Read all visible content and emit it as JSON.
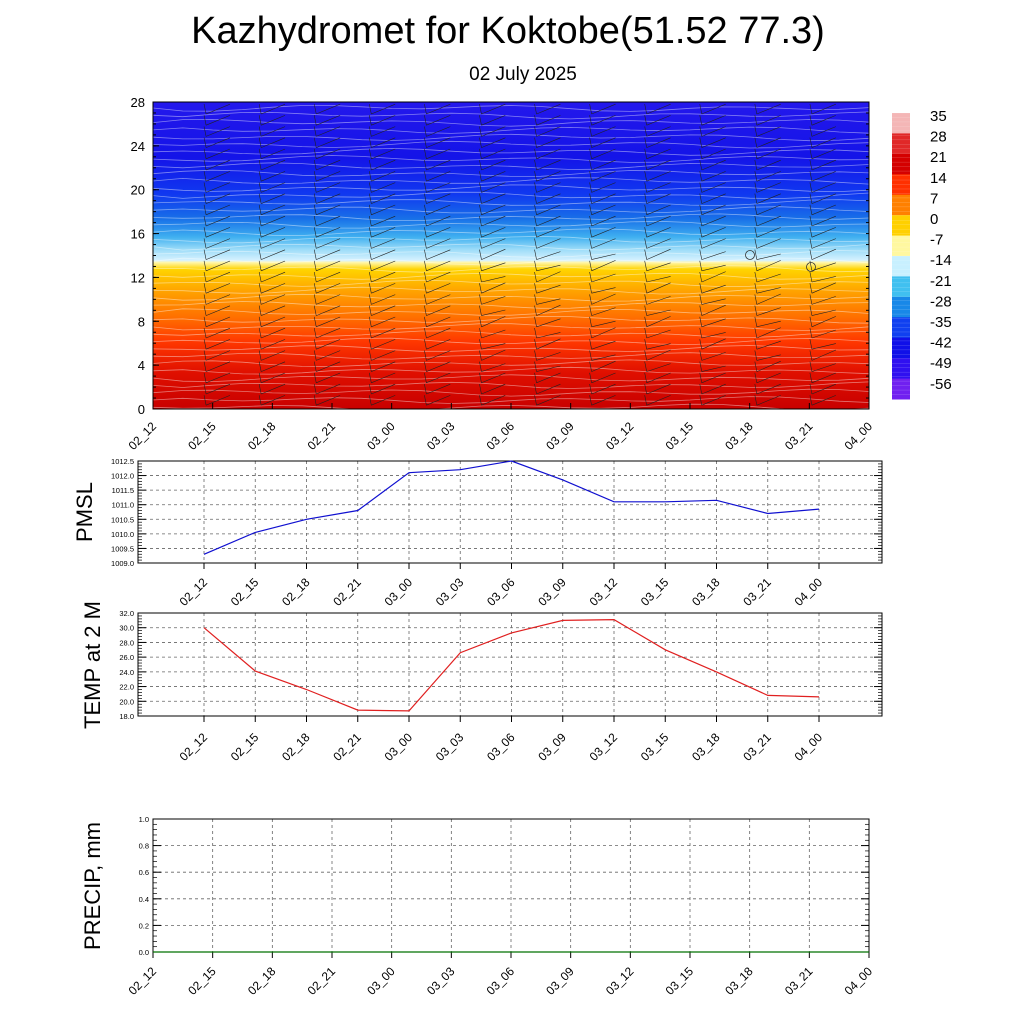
{
  "header": {
    "title": "Kazhydromet for Koktobe(51.52 77.3)",
    "subtitle": "02 July 2025"
  },
  "colors": {
    "pmsl_line": "#1010d0",
    "temp_line": "#e02020",
    "precip_line": "#007000"
  },
  "chart_data": [
    {
      "type": "heatmap",
      "title": "",
      "xlabel": "",
      "ylabel": "",
      "x_tick_labels": [
        "02_12",
        "02_15",
        "02_18",
        "02_21",
        "03_00",
        "03_03",
        "03_06",
        "03_09",
        "03_12",
        "03_15",
        "03_18",
        "03_21",
        "04_00"
      ],
      "y_ticks": [
        0,
        4,
        8,
        12,
        16,
        20,
        24,
        28
      ],
      "ylim": [
        0,
        28
      ],
      "colorbar_labels": [
        "35",
        "28",
        "21",
        "14",
        "7",
        "0",
        "-7",
        "-14",
        "-21",
        "-28",
        "-35",
        "-42",
        "-49",
        "-56"
      ],
      "colorbar_colors": [
        "#f4b6b6",
        "#e02828",
        "#d40000",
        "#ff3000",
        "#ff8000",
        "#ffd000",
        "#fff8a0",
        "#c8f0ff",
        "#40c0f0",
        "#1888e8",
        "#1040f0",
        "#1010e8",
        "#3010f0",
        "#7020f0"
      ],
      "temperature_profile": [
        {
          "level": 0,
          "value": 30
        },
        {
          "level": 4,
          "value": 25
        },
        {
          "level": 8,
          "value": 14
        },
        {
          "level": 12,
          "value": 3
        },
        {
          "level": 13.5,
          "value": -5
        },
        {
          "level": 14,
          "value": -14
        },
        {
          "level": 16,
          "value": -25
        },
        {
          "level": 20,
          "value": -45
        },
        {
          "level": 28,
          "value": -55
        }
      ],
      "grid": false,
      "legend": "right"
    },
    {
      "type": "line",
      "ylabel": "PMSL",
      "categories": [
        "02_12",
        "02_15",
        "02_18",
        "02_21",
        "03_00",
        "03_03",
        "03_06",
        "03_09",
        "03_12",
        "03_15",
        "03_18",
        "03_21",
        "04_00"
      ],
      "values": [
        1009.3,
        1010.05,
        1010.5,
        1010.8,
        1012.1,
        1012.2,
        1012.5,
        1011.85,
        1011.1,
        1011.1,
        1011.15,
        1010.7,
        1010.85
      ],
      "ylim": [
        1009.0,
        1012.5
      ],
      "y_ticks": [
        "1009.0",
        "1009.5",
        "1010.0",
        "1010.5",
        "1011.0",
        "1011.5",
        "1012.0",
        "1012.5"
      ],
      "grid": true
    },
    {
      "type": "line",
      "ylabel": "TEMP at 2 M",
      "categories": [
        "02_12",
        "02_15",
        "02_18",
        "02_21",
        "03_00",
        "03_03",
        "03_06",
        "03_09",
        "03_12",
        "03_15",
        "03_18",
        "03_21",
        "04_00"
      ],
      "values": [
        30.0,
        24.1,
        21.6,
        18.8,
        18.7,
        26.6,
        29.3,
        31.0,
        31.1,
        27.0,
        24.0,
        20.8,
        20.6
      ],
      "ylim": [
        18.0,
        32.0
      ],
      "y_ticks": [
        "18.0",
        "20.0",
        "22.0",
        "24.0",
        "26.0",
        "28.0",
        "30.0",
        "32.0"
      ],
      "grid": true
    },
    {
      "type": "line",
      "ylabel": "PRECIP, mm",
      "x_tick_labels": [
        "02_12",
        "02_15",
        "02_18",
        "02_21",
        "03_00",
        "03_03",
        "03_06",
        "03_09",
        "03_12",
        "03_15",
        "03_18",
        "03_21",
        "04_00"
      ],
      "values": [
        0,
        0,
        0,
        0,
        0,
        0,
        0,
        0,
        0,
        0,
        0,
        0,
        0
      ],
      "ylim": [
        0.0,
        1.0
      ],
      "y_ticks": [
        "0.0",
        "0.2",
        "0.4",
        "0.6",
        "0.8",
        "1.0"
      ],
      "grid": true
    }
  ]
}
